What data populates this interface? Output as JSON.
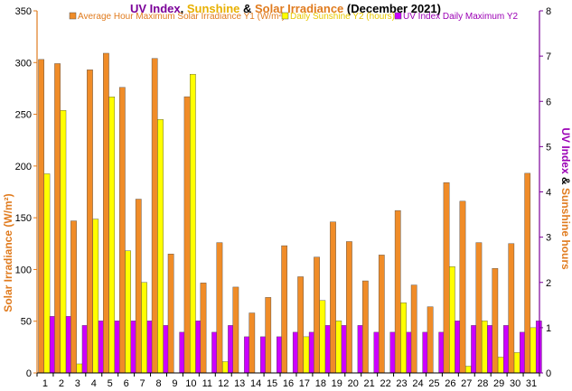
{
  "chart_data": {
    "type": "bar",
    "title": {
      "parts": [
        {
          "text": "UV Index",
          "color": "#7b0099"
        },
        {
          "text": ", ",
          "color": "#000000"
        },
        {
          "text": "Sunshine",
          "color": "#e8b000"
        },
        {
          "text": " & ",
          "color": "#000000"
        },
        {
          "text": "Solar Irradiance",
          "color": "#e07b1e"
        },
        {
          "text": " (December 2021)",
          "color": "#000000"
        }
      ]
    },
    "ylabel_left": "Solar Irradiance (W/m²)",
    "ylabel_right": {
      "parts": [
        {
          "text": "UV Index",
          "color": "#9b00b5"
        },
        {
          "text": " & ",
          "color": "#000000"
        },
        {
          "text": "Sunshine hours",
          "color": "#e07b1e"
        }
      ]
    },
    "y1_lim": [
      0,
      350
    ],
    "y1_ticks": [
      0,
      50,
      100,
      150,
      200,
      250,
      300,
      350
    ],
    "y2_lim": [
      0,
      8
    ],
    "y2_ticks": [
      0,
      1,
      2,
      3,
      4,
      5,
      6,
      7,
      8
    ],
    "categories": [
      "1",
      "2",
      "3",
      "4",
      "5",
      "6",
      "7",
      "8",
      "9",
      "10",
      "11",
      "12",
      "13",
      "14",
      "15",
      "16",
      "17",
      "18",
      "19",
      "20",
      "21",
      "22",
      "23",
      "24",
      "25",
      "26",
      "27",
      "28",
      "29",
      "30",
      "31"
    ],
    "legend_position": "top",
    "grid": false,
    "series": [
      {
        "name": "Average Hour Maximum Solar Irradiance Y1 (W/m²)",
        "axis": "y1",
        "color": "#f08c28",
        "legend_color": "#e07b1e",
        "values": [
          303,
          299,
          147,
          293,
          309,
          276,
          168,
          304,
          115,
          267,
          87,
          126,
          83,
          58,
          73,
          123,
          93,
          112,
          146,
          127,
          89,
          114,
          157,
          85,
          64,
          184,
          166,
          126,
          101,
          125,
          193
        ]
      },
      {
        "name": "Daily Sunshine Y2 (hours)",
        "axis": "y2",
        "color": "#ffff00",
        "legend_color": "#e8c800",
        "values": [
          4.4,
          5.8,
          0.2,
          3.4,
          6.1,
          2.7,
          2.0,
          5.6,
          0.0,
          6.6,
          0.0,
          0.25,
          0.0,
          0.0,
          0.0,
          0.0,
          0.8,
          1.6,
          1.15,
          0.0,
          0.0,
          0.0,
          1.55,
          0.0,
          0.0,
          2.35,
          0.15,
          1.15,
          0.35,
          0.45,
          1.0
        ]
      },
      {
        "name": "UV Index Daily Maximum Y2",
        "axis": "y2",
        "color": "#cc00ff",
        "legend_color": "#9b00b5",
        "values": [
          1.25,
          1.25,
          1.05,
          1.15,
          1.15,
          1.15,
          1.15,
          1.05,
          0.9,
          1.15,
          0.9,
          1.05,
          0.8,
          0.8,
          0.8,
          0.9,
          0.9,
          1.05,
          1.05,
          1.05,
          0.9,
          0.9,
          0.9,
          0.9,
          0.9,
          1.15,
          1.05,
          1.05,
          1.05,
          0.9,
          1.15
        ]
      }
    ]
  }
}
